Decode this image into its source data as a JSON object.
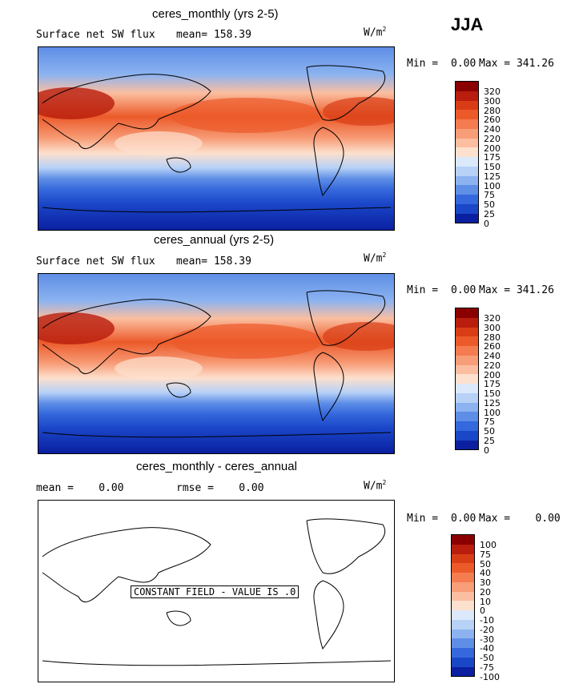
{
  "season": "JJA",
  "units_prefix": "W/m",
  "units_exp": "2",
  "panels": [
    {
      "title": "ceres_monthly (yrs 2-5)",
      "subtitle": "Surface net SW flux",
      "mean_label": "mean= 158.39",
      "min_label": "Min =",
      "min_value": "0.00",
      "max_label": "Max = 341.26",
      "ticks": [
        "320",
        "300",
        "280",
        "260",
        "240",
        "220",
        "200",
        "175",
        "150",
        "125",
        "100",
        "75",
        "50",
        "25",
        "0"
      ]
    },
    {
      "title": "ceres_annual (yrs 2-5)",
      "subtitle": "Surface net SW flux",
      "mean_label": "mean= 158.39",
      "min_label": "Min =",
      "min_value": "0.00",
      "max_label": "Max = 341.26",
      "ticks": [
        "320",
        "300",
        "280",
        "260",
        "240",
        "220",
        "200",
        "175",
        "150",
        "125",
        "100",
        "75",
        "50",
        "25",
        "0"
      ]
    },
    {
      "title": "ceres_monthly - ceres_annual",
      "mean_label": "mean =    0.00",
      "rmse_label": "rmse =    0.00",
      "min_label": "Min =",
      "min_value": "0.00",
      "max_label": "Max =    0.00",
      "note": "CONSTANT FIELD - VALUE IS .0",
      "ticks": [
        "100",
        "75",
        "50",
        "40",
        "30",
        "20",
        "10",
        "0",
        "-10",
        "-20",
        "-30",
        "-40",
        "-50",
        "-75",
        "-100"
      ]
    }
  ],
  "colors": {
    "scale": [
      "#8a0000",
      "#b81d0d",
      "#d93d16",
      "#ec5a2a",
      "#f47c50",
      "#f79d78",
      "#fbbea0",
      "#fde0cd",
      "#dbe9fb",
      "#b7d1f7",
      "#8cb3f0",
      "#5e8ee6",
      "#3568dc",
      "#1a46c8",
      "#0a20a0",
      "#001079"
    ],
    "ocean_deep": "#0a2fb0",
    "ocean_mid": "#3568dc",
    "warm": "#ec5a2a"
  }
}
